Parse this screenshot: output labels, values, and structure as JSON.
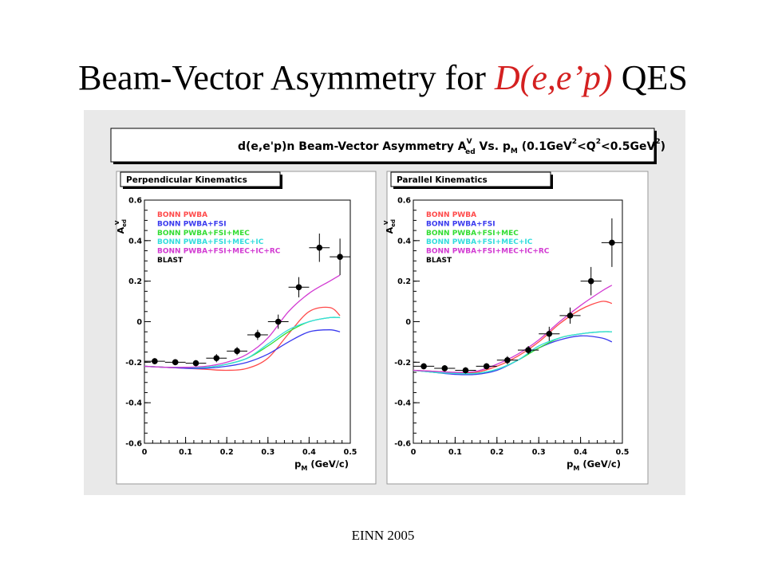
{
  "slide": {
    "title_main": "Beam-Vector Asymmetry for",
    "title_reaction": "D(e,e’p)",
    "title_suffix": "QES",
    "footer": "EINN 2005"
  },
  "figure": {
    "banner": "d(e,e'p)n Beam-Vector Asymmetry A",
    "banner_sup": "V",
    "banner_sub": "ed",
    "banner_tail": " Vs. p",
    "banner_tail_sub": "M",
    "banner_range_a": " (0.1GeV",
    "banner_range_sup1": "2",
    "banner_range_b": "<Q",
    "banner_range_sup2": "2",
    "banner_range_c": "<0.5GeV",
    "banner_range_sup3": "2",
    "banner_range_d": ")"
  },
  "colors": {
    "background": "#e9e9e9",
    "BONN PWBA": "#ff4a4a",
    "BONN PWBA+FSI": "#3a3aee",
    "BONN PWBA+FSI+MEC": "#33dd33",
    "BONN PWBA+FSI+MEC+IC": "#33dddd",
    "BONN PWBA+FSI+MEC+IC+RC": "#d23ad2",
    "BLAST": "#000000"
  },
  "chart_data": [
    {
      "type": "line",
      "panel_label": "Perpendicular Kinematics",
      "xlabel": "p",
      "xlabel_sub": "M",
      "xlabel_unit": "(GeV/c)",
      "ylabel": "A",
      "ylabel_sup": "V",
      "ylabel_sub": "ed",
      "xlim": [
        0,
        0.5
      ],
      "ylim": [
        -0.6,
        0.6
      ],
      "xticks": [
        "0",
        "0.1",
        "0.2",
        "0.3",
        "0.4",
        "0.5"
      ],
      "yticks": [
        "-0.6",
        "-0.4",
        "-0.2",
        "0",
        "0.2",
        "0.4",
        "0.6"
      ],
      "legend": [
        "BONN PWBA",
        "BONN PWBA+FSI",
        "BONN PWBA+FSI+MEC",
        "BONN PWBA+FSI+MEC+IC",
        "BONN PWBA+FSI+MEC+IC+RC",
        "BLAST"
      ],
      "series": [
        {
          "name": "BONN PWBA",
          "x": [
            0,
            0.05,
            0.1,
            0.15,
            0.2,
            0.25,
            0.3,
            0.35,
            0.4,
            0.45,
            0.475
          ],
          "y": [
            -0.22,
            -0.225,
            -0.23,
            -0.235,
            -0.24,
            -0.23,
            -0.18,
            -0.06,
            0.05,
            0.07,
            0.03
          ]
        },
        {
          "name": "BONN PWBA+FSI",
          "x": [
            0,
            0.05,
            0.1,
            0.15,
            0.2,
            0.25,
            0.3,
            0.35,
            0.4,
            0.45,
            0.475
          ],
          "y": [
            -0.22,
            -0.225,
            -0.23,
            -0.23,
            -0.22,
            -0.2,
            -0.16,
            -0.1,
            -0.05,
            -0.04,
            -0.05
          ]
        },
        {
          "name": "BONN PWBA+FSI+MEC",
          "x": [
            0,
            0.05,
            0.1,
            0.15,
            0.2,
            0.25,
            0.3,
            0.35,
            0.4,
            0.45,
            0.475
          ],
          "y": [
            -0.22,
            -0.225,
            -0.225,
            -0.225,
            -0.21,
            -0.18,
            -0.12,
            -0.05,
            0.0,
            0.02,
            0.02
          ]
        },
        {
          "name": "BONN PWBA+FSI+MEC+IC",
          "x": [
            0,
            0.05,
            0.1,
            0.15,
            0.2,
            0.25,
            0.3,
            0.35,
            0.4,
            0.45,
            0.475
          ],
          "y": [
            -0.22,
            -0.225,
            -0.225,
            -0.225,
            -0.21,
            -0.18,
            -0.11,
            -0.04,
            0.0,
            0.02,
            0.02
          ]
        },
        {
          "name": "BONN PWBA+FSI+MEC+IC+RC",
          "x": [
            0,
            0.05,
            0.1,
            0.15,
            0.2,
            0.25,
            0.3,
            0.35,
            0.4,
            0.45,
            0.475
          ],
          "y": [
            -0.22,
            -0.225,
            -0.225,
            -0.22,
            -0.2,
            -0.16,
            -0.08,
            0.05,
            0.14,
            0.2,
            0.23
          ]
        }
      ],
      "points": {
        "name": "BLAST",
        "x": [
          0.025,
          0.075,
          0.125,
          0.175,
          0.225,
          0.275,
          0.325,
          0.375,
          0.425,
          0.475
        ],
        "y": [
          -0.195,
          -0.2,
          -0.205,
          -0.18,
          -0.145,
          -0.065,
          0.0,
          0.17,
          0.365,
          0.32
        ],
        "yerr": [
          0.015,
          0.015,
          0.015,
          0.02,
          0.02,
          0.025,
          0.035,
          0.05,
          0.07,
          0.09
        ]
      }
    },
    {
      "type": "line",
      "panel_label": "Parallel Kinematics",
      "xlabel": "p",
      "xlabel_sub": "M",
      "xlabel_unit": "(GeV/c)",
      "ylabel": "A",
      "ylabel_sup": "V",
      "ylabel_sub": "ed",
      "xlim": [
        0,
        0.5
      ],
      "ylim": [
        -0.6,
        0.6
      ],
      "xticks": [
        "0",
        "0.1",
        "0.2",
        "0.3",
        "0.4",
        "0.5"
      ],
      "yticks": [
        "-0.6",
        "-0.4",
        "-0.2",
        "0",
        "0.2",
        "0.4",
        "0.6"
      ],
      "legend": [
        "BONN PWBA",
        "BONN PWBA+FSI",
        "BONN PWBA+FSI+MEC",
        "BONN PWBA+FSI+MEC+IC",
        "BONN PWBA+FSI+MEC+IC+RC",
        "BLAST"
      ],
      "series": [
        {
          "name": "BONN PWBA",
          "x": [
            0,
            0.05,
            0.1,
            0.15,
            0.2,
            0.25,
            0.3,
            0.35,
            0.4,
            0.45,
            0.475
          ],
          "y": [
            -0.24,
            -0.245,
            -0.25,
            -0.25,
            -0.22,
            -0.17,
            -0.1,
            -0.01,
            0.06,
            0.1,
            0.09
          ]
        },
        {
          "name": "BONN PWBA+FSI",
          "x": [
            0,
            0.05,
            0.1,
            0.15,
            0.2,
            0.25,
            0.3,
            0.35,
            0.4,
            0.45,
            0.475
          ],
          "y": [
            -0.24,
            -0.25,
            -0.26,
            -0.26,
            -0.24,
            -0.19,
            -0.13,
            -0.09,
            -0.07,
            -0.08,
            -0.1
          ]
        },
        {
          "name": "BONN PWBA+FSI+MEC",
          "x": [
            0,
            0.05,
            0.1,
            0.15,
            0.2,
            0.25,
            0.3,
            0.35,
            0.4,
            0.45,
            0.475
          ],
          "y": [
            -0.24,
            -0.25,
            -0.255,
            -0.255,
            -0.235,
            -0.19,
            -0.13,
            -0.08,
            -0.06,
            -0.05,
            -0.05
          ]
        },
        {
          "name": "BONN PWBA+FSI+MEC+IC",
          "x": [
            0,
            0.05,
            0.1,
            0.15,
            0.2,
            0.25,
            0.3,
            0.35,
            0.4,
            0.45,
            0.475
          ],
          "y": [
            -0.24,
            -0.25,
            -0.255,
            -0.255,
            -0.235,
            -0.19,
            -0.12,
            -0.08,
            -0.06,
            -0.05,
            -0.05
          ]
        },
        {
          "name": "BONN PWBA+FSI+MEC+IC+RC",
          "x": [
            0,
            0.05,
            0.1,
            0.15,
            0.2,
            0.25,
            0.3,
            0.35,
            0.4,
            0.45,
            0.475
          ],
          "y": [
            -0.24,
            -0.245,
            -0.25,
            -0.245,
            -0.21,
            -0.16,
            -0.09,
            0.0,
            0.08,
            0.15,
            0.18
          ]
        }
      ],
      "points": {
        "name": "BLAST",
        "x": [
          0.025,
          0.075,
          0.125,
          0.175,
          0.225,
          0.275,
          0.325,
          0.375,
          0.425,
          0.475
        ],
        "y": [
          -0.22,
          -0.23,
          -0.24,
          -0.22,
          -0.19,
          -0.14,
          -0.06,
          0.03,
          0.2,
          0.39
        ],
        "yerr": [
          0.015,
          0.015,
          0.015,
          0.015,
          0.02,
          0.02,
          0.035,
          0.04,
          0.07,
          0.12
        ]
      }
    }
  ]
}
